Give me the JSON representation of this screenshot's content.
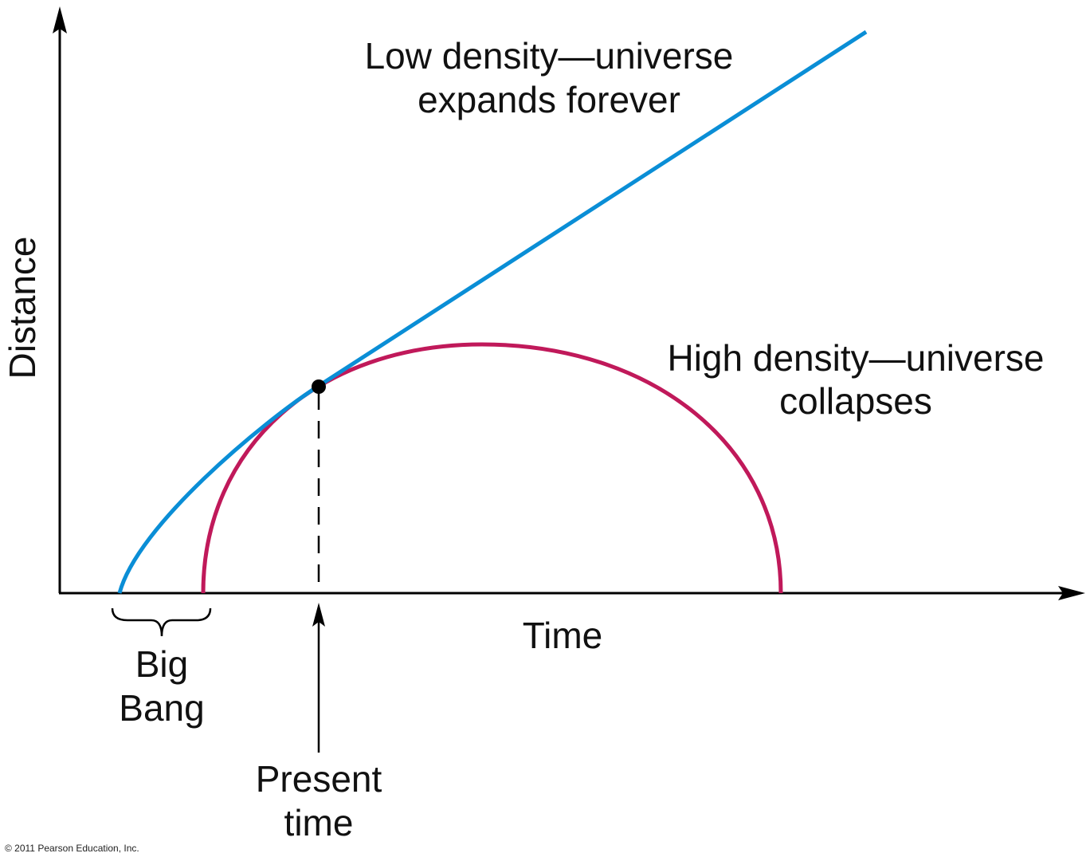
{
  "axes": {
    "y_label": "Distance",
    "x_label": "Time"
  },
  "curves": {
    "low_density": {
      "label_line1": "Low density—universe",
      "label_line2": "expands forever",
      "color": "#0a8ed6"
    },
    "high_density": {
      "label_line1": "High density—universe",
      "label_line2": "collapses",
      "color": "#c0195a"
    }
  },
  "annotations": {
    "big_bang_line1": "Big",
    "big_bang_line2": "Bang",
    "present_line1": "Present",
    "present_line2": "time"
  },
  "copyright": "© 2011 Pearson Education, Inc."
}
